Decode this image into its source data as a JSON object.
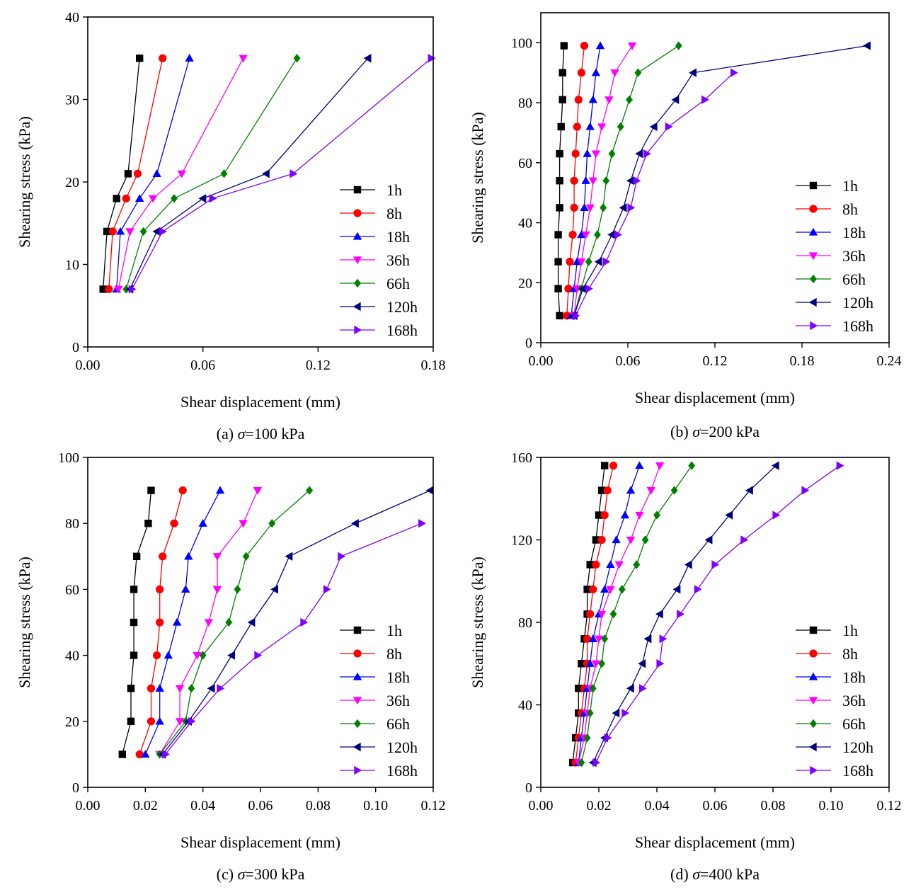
{
  "colors": {
    "1h": "#000000",
    "8h": "#ff0000",
    "18h": "#0000ff",
    "36h": "#ff00ff",
    "66h": "#008000",
    "120h": "#000080",
    "168h": "#8000ff"
  },
  "chart_data": [
    {
      "type": "line",
      "caption_prefix": "(a) ",
      "caption_sigma": "σ",
      "caption_suffix": "=100 kPa",
      "xlabel": "Shear displacement (mm)",
      "ylabel": "Shearing stress (kPa)",
      "xlim": [
        0,
        0.18
      ],
      "ylim": [
        0,
        40
      ],
      "xticks": [
        0,
        0.06,
        0.12,
        0.18
      ],
      "xtick_labels": [
        "0.00",
        "0.06",
        "0.12",
        "0.18"
      ],
      "yticks": [
        0,
        10,
        20,
        30,
        40
      ],
      "ytick_labels": [
        "0",
        "10",
        "20",
        "30",
        "40"
      ],
      "y": [
        7,
        14,
        18,
        21,
        35
      ],
      "series": [
        {
          "name": "1h",
          "marker": "square",
          "x": [
            0.008,
            0.01,
            0.015,
            0.021,
            0.027
          ]
        },
        {
          "name": "8h",
          "marker": "circle",
          "x": [
            0.011,
            0.013,
            0.02,
            0.026,
            0.039
          ]
        },
        {
          "name": "18h",
          "marker": "tri-up",
          "x": [
            0.015,
            0.017,
            0.027,
            0.036,
            0.053
          ]
        },
        {
          "name": "36h",
          "marker": "tri-down",
          "x": [
            0.016,
            0.022,
            0.034,
            0.049,
            0.081
          ]
        },
        {
          "name": "66h",
          "marker": "diamond",
          "x": [
            0.02,
            0.029,
            0.045,
            0.071,
            0.109
          ]
        },
        {
          "name": "120h",
          "marker": "tri-left",
          "x": [
            0.022,
            0.036,
            0.06,
            0.093,
            0.146
          ]
        },
        {
          "name": "168h",
          "marker": "tri-right",
          "x": [
            0.023,
            0.039,
            0.065,
            0.107,
            0.179
          ]
        }
      ]
    },
    {
      "type": "line",
      "caption_prefix": "(b) ",
      "caption_sigma": "σ",
      "caption_suffix": "=200 kPa",
      "xlabel": "Shear displacement (mm)",
      "ylabel": "Shearing stress (kPa)",
      "xlim": [
        0,
        0.24
      ],
      "ylim": [
        0,
        110
      ],
      "xticks": [
        0,
        0.06,
        0.12,
        0.18,
        0.24
      ],
      "xtick_labels": [
        "0.00",
        "0.06",
        "0.12",
        "0.18",
        "0.24"
      ],
      "yticks": [
        0,
        20,
        40,
        60,
        80,
        100
      ],
      "ytick_labels": [
        "0",
        "20",
        "40",
        "60",
        "80",
        "100"
      ],
      "y": [
        9,
        18,
        27,
        36,
        45,
        54,
        63,
        72,
        81,
        90,
        99
      ],
      "series": [
        {
          "name": "1h",
          "marker": "square",
          "x": [
            0.013,
            0.012,
            0.012,
            0.012,
            0.013,
            0.013,
            0.013,
            0.014,
            0.015,
            0.015,
            0.016
          ]
        },
        {
          "name": "8h",
          "marker": "circle",
          "x": [
            0.018,
            0.019,
            0.02,
            0.022,
            0.023,
            0.023,
            0.024,
            0.025,
            0.026,
            0.028,
            0.03
          ]
        },
        {
          "name": "18h",
          "marker": "tri-up",
          "x": [
            0.021,
            0.023,
            0.025,
            0.028,
            0.03,
            0.031,
            0.032,
            0.034,
            0.036,
            0.038,
            0.041
          ]
        },
        {
          "name": "36h",
          "marker": "tri-down",
          "x": [
            0.023,
            0.025,
            0.028,
            0.031,
            0.034,
            0.036,
            0.038,
            0.042,
            0.047,
            0.051,
            0.063
          ]
        },
        {
          "name": "66h",
          "marker": "diamond",
          "x": [
            0.023,
            0.028,
            0.033,
            0.039,
            0.043,
            0.045,
            0.049,
            0.055,
            0.061,
            0.067,
            0.095
          ]
        },
        {
          "name": "120h",
          "marker": "tri-left",
          "x": [
            0.023,
            0.029,
            0.04,
            0.049,
            0.057,
            0.062,
            0.068,
            0.078,
            0.093,
            0.105,
            0.225
          ]
        },
        {
          "name": "168h",
          "marker": "tri-right",
          "x": [
            0.024,
            0.033,
            0.045,
            0.053,
            0.062,
            0.066,
            0.073,
            0.088,
            0.113,
            0.133
          ]
        }
      ]
    },
    {
      "type": "line",
      "caption_prefix": "(c) ",
      "caption_sigma": "σ",
      "caption_suffix": "=300 kPa",
      "xlabel": "Shear displacement (mm)",
      "ylabel": "Shearing stress (kPa)",
      "xlim": [
        0,
        0.12
      ],
      "ylim": [
        0,
        100
      ],
      "xticks": [
        0,
        0.02,
        0.04,
        0.06,
        0.08,
        0.1,
        0.12
      ],
      "xtick_labels": [
        "0.00",
        "0.02",
        "0.04",
        "0.06",
        "0.08",
        "0.10",
        "0.12"
      ],
      "yticks": [
        0,
        20,
        40,
        60,
        80,
        100
      ],
      "ytick_labels": [
        "0",
        "20",
        "40",
        "60",
        "80",
        "100"
      ],
      "y": [
        10,
        20,
        30,
        40,
        50,
        60,
        70,
        80,
        90
      ],
      "series": [
        {
          "name": "1h",
          "marker": "square",
          "x": [
            0.012,
            0.015,
            0.015,
            0.016,
            0.016,
            0.016,
            0.017,
            0.021,
            0.022
          ]
        },
        {
          "name": "8h",
          "marker": "circle",
          "x": [
            0.018,
            0.022,
            0.022,
            0.024,
            0.025,
            0.025,
            0.026,
            0.03,
            0.033
          ]
        },
        {
          "name": "18h",
          "marker": "tri-up",
          "x": [
            0.02,
            0.025,
            0.025,
            0.028,
            0.031,
            0.034,
            0.035,
            0.04,
            0.046
          ]
        },
        {
          "name": "36h",
          "marker": "tri-down",
          "x": [
            0.025,
            0.032,
            0.032,
            0.038,
            0.042,
            0.045,
            0.045,
            0.054,
            0.059
          ]
        },
        {
          "name": "66h",
          "marker": "diamond",
          "x": [
            0.025,
            0.034,
            0.036,
            0.04,
            0.049,
            0.052,
            0.055,
            0.064,
            0.077
          ]
        },
        {
          "name": "120h",
          "marker": "tri-left",
          "x": [
            0.026,
            0.035,
            0.043,
            0.05,
            0.057,
            0.065,
            0.07,
            0.093,
            0.119
          ]
        },
        {
          "name": "168h",
          "marker": "tri-right",
          "x": [
            0.027,
            0.036,
            0.046,
            0.059,
            0.075,
            0.083,
            0.088,
            0.116
          ]
        }
      ]
    },
    {
      "type": "line",
      "caption_prefix": "(d) ",
      "caption_sigma": "σ",
      "caption_suffix": "=400 kPa",
      "xlabel": "Shear displacement (mm)",
      "ylabel": "Shearing stress (kPa)",
      "xlim": [
        0,
        0.12
      ],
      "ylim": [
        0,
        160
      ],
      "xticks": [
        0,
        0.02,
        0.04,
        0.06,
        0.08,
        0.1,
        0.12
      ],
      "xtick_labels": [
        "0.00",
        "0.02",
        "0.04",
        "0.06",
        "0.08",
        "0.10",
        "0.12"
      ],
      "yticks": [
        0,
        40,
        80,
        120,
        160
      ],
      "ytick_labels": [
        "0",
        "40",
        "80",
        "120",
        "160"
      ],
      "y": [
        12,
        24,
        36,
        48,
        60,
        72,
        84,
        96,
        108,
        120,
        132,
        144,
        156
      ],
      "series": [
        {
          "name": "1h",
          "marker": "square",
          "x": [
            0.011,
            0.012,
            0.013,
            0.013,
            0.014,
            0.015,
            0.016,
            0.016,
            0.017,
            0.019,
            0.02,
            0.021,
            0.022
          ]
        },
        {
          "name": "8h",
          "marker": "circle",
          "x": [
            0.012,
            0.013,
            0.014,
            0.015,
            0.016,
            0.016,
            0.017,
            0.018,
            0.019,
            0.021,
            0.022,
            0.023,
            0.025
          ]
        },
        {
          "name": "18h",
          "marker": "tri-up",
          "x": [
            0.013,
            0.014,
            0.015,
            0.016,
            0.017,
            0.018,
            0.02,
            0.022,
            0.024,
            0.026,
            0.029,
            0.031,
            0.034
          ]
        },
        {
          "name": "36h",
          "marker": "tri-down",
          "x": [
            0.013,
            0.015,
            0.016,
            0.017,
            0.019,
            0.02,
            0.021,
            0.024,
            0.027,
            0.031,
            0.034,
            0.038,
            0.041
          ]
        },
        {
          "name": "66h",
          "marker": "diamond",
          "x": [
            0.014,
            0.016,
            0.017,
            0.018,
            0.021,
            0.022,
            0.025,
            0.028,
            0.033,
            0.036,
            0.04,
            0.046,
            0.052
          ]
        },
        {
          "name": "120h",
          "marker": "tri-left",
          "x": [
            0.018,
            0.022,
            0.026,
            0.031,
            0.035,
            0.037,
            0.041,
            0.047,
            0.051,
            0.058,
            0.065,
            0.072,
            0.081
          ]
        },
        {
          "name": "168h",
          "marker": "tri-right",
          "x": [
            0.019,
            0.023,
            0.029,
            0.035,
            0.041,
            0.042,
            0.048,
            0.054,
            0.06,
            0.07,
            0.081,
            0.091,
            0.103
          ]
        }
      ]
    }
  ]
}
